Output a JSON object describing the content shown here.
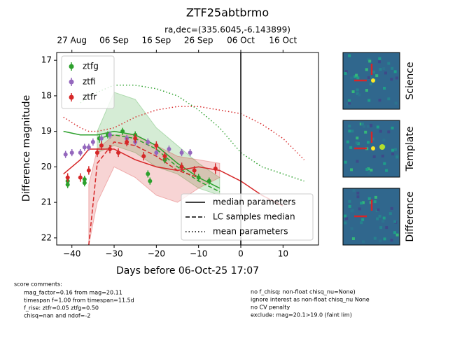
{
  "chart_data": {
    "type": "lightcurve",
    "title": "ZTF25abtbrmo",
    "subtitle": "ra,dec=(335.6045,-6.143899)",
    "xlabel": "Days before 06-Oct-25 17:07",
    "ylabel": "Difference magnitude",
    "xlim": [
      -43.6,
      18.4
    ],
    "ylim": [
      22.2,
      16.78
    ],
    "xticks": [
      {
        "value": -40,
        "label": "−40"
      },
      {
        "value": -30,
        "label": "−30"
      },
      {
        "value": -20,
        "label": "−20"
      },
      {
        "value": -10,
        "label": "−10"
      },
      0,
      10
    ],
    "x2ticks": [
      {
        "value": -40,
        "label": "27 Aug"
      },
      {
        "value": -30,
        "label": "06 Sep"
      },
      {
        "value": -20,
        "label": "16 Sep"
      },
      {
        "value": -10,
        "label": "26 Sep"
      },
      {
        "value": 0,
        "label": "06 Oct"
      },
      {
        "value": 10,
        "label": "16 Oct"
      }
    ],
    "yticks": [
      17,
      18,
      19,
      20,
      21,
      22
    ],
    "reference_x": 0,
    "legend": "upper left",
    "series": [
      {
        "name": "ztfg",
        "color": "#2ca02c",
        "x": [
          -41,
          -41,
          -37,
          -37,
          -33.5,
          -31.5,
          -28,
          -25,
          -22,
          -21.5,
          -18,
          -14,
          -10,
          -7.5
        ],
        "values": [
          20.4,
          20.5,
          20.35,
          20.45,
          19.2,
          19.1,
          19.0,
          19.1,
          20.2,
          20.4,
          19.8,
          20.0,
          20.3,
          20.4
        ],
        "errors": [
          0.1,
          0.1,
          0.1,
          0.1,
          0.12,
          0.1,
          0.1,
          0.1,
          0.1,
          0.1,
          0.1,
          0.1,
          0.1,
          0.1
        ]
      },
      {
        "name": "ztfi",
        "color": "#9467bd",
        "x": [
          -41.5,
          -40,
          -38,
          -37,
          -36,
          -35,
          -33,
          -31,
          -27,
          -25,
          -22,
          -20,
          -17,
          -14,
          -12
        ],
        "values": [
          19.65,
          19.6,
          19.6,
          19.45,
          19.45,
          19.3,
          19.2,
          19.1,
          19.2,
          19.3,
          19.3,
          19.6,
          19.5,
          19.6,
          19.6
        ],
        "errors": [
          0.1,
          0.1,
          0.1,
          0.1,
          0.1,
          0.1,
          0.1,
          0.1,
          0.1,
          0.1,
          0.1,
          0.1,
          0.1,
          0.1,
          0.1
        ]
      },
      {
        "name": "ztfr",
        "color": "#d62728",
        "x": [
          -41,
          -38,
          -36,
          -34,
          -33,
          -31,
          -29,
          -27,
          -25,
          -23,
          -20,
          -18,
          -14,
          -11,
          -6
        ],
        "values": [
          20.3,
          20.3,
          20.1,
          19.6,
          19.4,
          19.5,
          19.6,
          19.3,
          19.2,
          19.7,
          19.4,
          19.7,
          20.0,
          20.1,
          20.05
        ],
        "errors": [
          0.12,
          0.12,
          0.12,
          0.12,
          0.12,
          0.12,
          0.12,
          0.12,
          0.12,
          0.12,
          0.12,
          0.12,
          0.12,
          0.12,
          0.15
        ]
      }
    ],
    "curve_x": [
      -42,
      -38,
      -36,
      -34,
      -30,
      -25,
      -20,
      -15,
      -10,
      -5,
      0,
      5,
      10,
      15
    ],
    "curves": [
      {
        "color": "#2ca02c",
        "style": "solid",
        "values": [
          19.0,
          19.1,
          19.1,
          19.1,
          19.0,
          19.1,
          19.4,
          19.9,
          20.3,
          20.6,
          null,
          null,
          null,
          null
        ]
      },
      {
        "color": "#2ca02c",
        "style": "dashed",
        "values": [
          null,
          null,
          null,
          19.2,
          19.1,
          19.2,
          19.5,
          20.0,
          20.4,
          20.7,
          null,
          null,
          null,
          null
        ]
      },
      {
        "color": "#2ca02c",
        "style": "dotted",
        "values": [
          null,
          18.2,
          18.0,
          17.9,
          17.7,
          17.7,
          17.8,
          18.0,
          18.4,
          18.9,
          19.6,
          20.0,
          20.2,
          20.4
        ]
      },
      {
        "color": "#d62728",
        "style": "solid",
        "values": [
          20.2,
          19.8,
          19.5,
          19.5,
          19.5,
          19.8,
          20.0,
          20.1,
          20.0,
          20.1,
          20.4,
          20.8,
          21.1,
          null
        ]
      },
      {
        "color": "#d62728",
        "style": "dashed",
        "values": [
          null,
          null,
          22.2,
          19.9,
          19.3,
          19.4,
          19.7,
          20.1,
          20.3,
          null,
          null,
          null,
          null,
          null
        ]
      },
      {
        "color": "#d62728",
        "style": "dotted",
        "values": [
          18.6,
          18.9,
          19.0,
          19.0,
          18.9,
          18.6,
          18.4,
          18.3,
          18.3,
          18.4,
          18.5,
          18.8,
          19.2,
          19.8
        ]
      }
    ],
    "bands": [
      {
        "color": "#2ca02c",
        "lower": [
          null,
          null,
          null,
          19.0,
          17.9,
          18.1,
          18.9,
          19.4,
          19.9,
          20.3,
          null,
          null,
          null,
          null
        ],
        "upper": [
          null,
          null,
          null,
          19.6,
          19.4,
          19.6,
          20.0,
          20.2,
          20.6,
          20.8,
          null,
          null,
          null,
          null
        ]
      },
      {
        "color": "#d62728",
        "lower": [
          null,
          null,
          20.5,
          19.5,
          19.1,
          19.1,
          19.4,
          19.7,
          19.8,
          19.9,
          null,
          null,
          null,
          null
        ],
        "upper": [
          null,
          null,
          22.2,
          21.0,
          20.0,
          20.3,
          20.8,
          21.0,
          20.6,
          20.3,
          null,
          null,
          null,
          null
        ]
      }
    ],
    "style_legend": [
      {
        "name": "median parameters",
        "style": "solid"
      },
      {
        "name": "LC samples median",
        "style": "dashed"
      },
      {
        "name": "mean parameters",
        "style": "dotted"
      }
    ]
  },
  "thumbnails": [
    {
      "label": "Science"
    },
    {
      "label": "Template"
    },
    {
      "label": "Difference"
    }
  ],
  "comments": {
    "heading": "score comments:",
    "left": [
      "mag_factor=0.16 from mag=20.11",
      "timespan f=1.00 from timespan=11.5d",
      "f_rise: ztfr=0.05 ztfg=0.50",
      "chisq=nan and ndof=-2"
    ],
    "right": [
      "no f_chisq: non-float chisq_nu=None)",
      "ignore interest as non-float chisq_nu None",
      "no CV penalty",
      "exclude: mag=20.1>19.0 (faint lim)"
    ]
  }
}
